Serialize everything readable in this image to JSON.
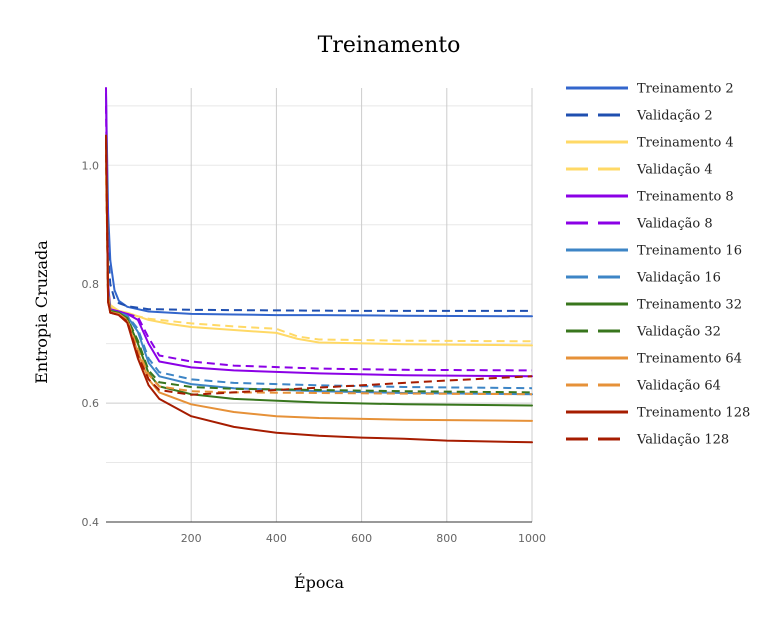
{
  "chart_data": {
    "type": "line",
    "title": "Treinamento",
    "xlabel": "Época",
    "ylabel": "Entropia Cruzada",
    "xlim": [
      0,
      1000
    ],
    "ylim": [
      0.4,
      1.13
    ],
    "x_ticks": [
      200,
      400,
      600,
      800,
      1000
    ],
    "y_ticks": [
      0.4,
      0.6,
      0.8,
      1.0
    ],
    "y_tick_labels": [
      "0.4",
      "0.6",
      "0.8",
      "1.0"
    ],
    "grid": true,
    "legend_position": "right",
    "series": [
      {
        "name": "Treinamento 2",
        "color": "#3366cc",
        "dash": false,
        "points": [
          [
            0,
            1.12
          ],
          [
            5,
            0.92
          ],
          [
            10,
            0.84
          ],
          [
            20,
            0.79
          ],
          [
            30,
            0.772
          ],
          [
            50,
            0.762
          ],
          [
            100,
            0.754
          ],
          [
            200,
            0.75
          ],
          [
            300,
            0.749
          ],
          [
            400,
            0.748
          ],
          [
            500,
            0.748
          ],
          [
            700,
            0.747
          ],
          [
            1000,
            0.746
          ]
        ]
      },
      {
        "name": "Validação 2",
        "color": "#1f4fb0",
        "dash": true,
        "points": [
          [
            0,
            1.05
          ],
          [
            5,
            0.86
          ],
          [
            10,
            0.8
          ],
          [
            20,
            0.775
          ],
          [
            30,
            0.768
          ],
          [
            50,
            0.763
          ],
          [
            100,
            0.758
          ],
          [
            200,
            0.757
          ],
          [
            400,
            0.756
          ],
          [
            600,
            0.755
          ],
          [
            800,
            0.755
          ],
          [
            1000,
            0.755
          ]
        ]
      },
      {
        "name": "Treinamento 4",
        "color": "#ffd966",
        "dash": false,
        "points": [
          [
            0,
            1.0
          ],
          [
            5,
            0.8
          ],
          [
            10,
            0.765
          ],
          [
            30,
            0.755
          ],
          [
            50,
            0.752
          ],
          [
            100,
            0.74
          ],
          [
            150,
            0.733
          ],
          [
            200,
            0.728
          ],
          [
            300,
            0.723
          ],
          [
            400,
            0.718
          ],
          [
            450,
            0.708
          ],
          [
            500,
            0.702
          ],
          [
            700,
            0.699
          ],
          [
            1000,
            0.697
          ]
        ]
      },
      {
        "name": "Validação 4",
        "color": "#ffd966",
        "dash": true,
        "points": [
          [
            0,
            0.98
          ],
          [
            5,
            0.79
          ],
          [
            10,
            0.762
          ],
          [
            30,
            0.756
          ],
          [
            50,
            0.75
          ],
          [
            100,
            0.742
          ],
          [
            200,
            0.734
          ],
          [
            300,
            0.729
          ],
          [
            400,
            0.725
          ],
          [
            450,
            0.712
          ],
          [
            500,
            0.707
          ],
          [
            700,
            0.705
          ],
          [
            1000,
            0.704
          ]
        ]
      },
      {
        "name": "Treinamento 8",
        "color": "#8b00e6",
        "dash": false,
        "points": [
          [
            0,
            1.13
          ],
          [
            5,
            0.8
          ],
          [
            10,
            0.758
          ],
          [
            30,
            0.754
          ],
          [
            50,
            0.75
          ],
          [
            75,
            0.74
          ],
          [
            100,
            0.7
          ],
          [
            125,
            0.67
          ],
          [
            200,
            0.66
          ],
          [
            300,
            0.655
          ],
          [
            500,
            0.65
          ],
          [
            700,
            0.647
          ],
          [
            1000,
            0.645
          ]
        ]
      },
      {
        "name": "Validação 8",
        "color": "#8b00e6",
        "dash": true,
        "points": [
          [
            0,
            1.1
          ],
          [
            5,
            0.79
          ],
          [
            10,
            0.757
          ],
          [
            30,
            0.754
          ],
          [
            50,
            0.75
          ],
          [
            75,
            0.745
          ],
          [
            100,
            0.71
          ],
          [
            125,
            0.68
          ],
          [
            200,
            0.67
          ],
          [
            300,
            0.663
          ],
          [
            500,
            0.658
          ],
          [
            700,
            0.656
          ],
          [
            1000,
            0.655
          ]
        ]
      },
      {
        "name": "Treinamento 16",
        "color": "#3d85c6",
        "dash": false,
        "points": [
          [
            0,
            1.05
          ],
          [
            5,
            0.79
          ],
          [
            10,
            0.756
          ],
          [
            30,
            0.752
          ],
          [
            50,
            0.746
          ],
          [
            75,
            0.72
          ],
          [
            100,
            0.668
          ],
          [
            125,
            0.645
          ],
          [
            200,
            0.632
          ],
          [
            300,
            0.625
          ],
          [
            500,
            0.62
          ],
          [
            700,
            0.617
          ],
          [
            1000,
            0.615
          ]
        ]
      },
      {
        "name": "Validação 16",
        "color": "#3d85c6",
        "dash": true,
        "points": [
          [
            0,
            1.04
          ],
          [
            5,
            0.785
          ],
          [
            10,
            0.755
          ],
          [
            30,
            0.752
          ],
          [
            50,
            0.747
          ],
          [
            75,
            0.725
          ],
          [
            100,
            0.675
          ],
          [
            125,
            0.652
          ],
          [
            200,
            0.64
          ],
          [
            300,
            0.634
          ],
          [
            500,
            0.63
          ],
          [
            700,
            0.627
          ],
          [
            1000,
            0.625
          ]
        ]
      },
      {
        "name": "Treinamento 32",
        "color": "#38761d",
        "dash": false,
        "points": [
          [
            0,
            1.05
          ],
          [
            5,
            0.78
          ],
          [
            10,
            0.755
          ],
          [
            30,
            0.752
          ],
          [
            50,
            0.742
          ],
          [
            75,
            0.7
          ],
          [
            100,
            0.65
          ],
          [
            125,
            0.628
          ],
          [
            200,
            0.615
          ],
          [
            300,
            0.607
          ],
          [
            500,
            0.601
          ],
          [
            700,
            0.598
          ],
          [
            1000,
            0.596
          ]
        ]
      },
      {
        "name": "Validação 32",
        "color": "#38761d",
        "dash": true,
        "points": [
          [
            0,
            1.04
          ],
          [
            5,
            0.78
          ],
          [
            10,
            0.754
          ],
          [
            30,
            0.751
          ],
          [
            50,
            0.743
          ],
          [
            75,
            0.705
          ],
          [
            100,
            0.655
          ],
          [
            125,
            0.635
          ],
          [
            200,
            0.627
          ],
          [
            300,
            0.624
          ],
          [
            500,
            0.622
          ],
          [
            700,
            0.62
          ],
          [
            1000,
            0.618
          ]
        ]
      },
      {
        "name": "Treinamento 64",
        "color": "#e69138",
        "dash": false,
        "points": [
          [
            0,
            1.03
          ],
          [
            5,
            0.78
          ],
          [
            10,
            0.753
          ],
          [
            30,
            0.75
          ],
          [
            50,
            0.738
          ],
          [
            75,
            0.685
          ],
          [
            100,
            0.64
          ],
          [
            125,
            0.618
          ],
          [
            200,
            0.598
          ],
          [
            300,
            0.585
          ],
          [
            400,
            0.578
          ],
          [
            500,
            0.575
          ],
          [
            700,
            0.572
          ],
          [
            1000,
            0.57
          ]
        ]
      },
      {
        "name": "Validação 64",
        "color": "#e69138",
        "dash": true,
        "points": [
          [
            0,
            1.02
          ],
          [
            5,
            0.78
          ],
          [
            10,
            0.752
          ],
          [
            30,
            0.75
          ],
          [
            50,
            0.74
          ],
          [
            75,
            0.69
          ],
          [
            100,
            0.648
          ],
          [
            125,
            0.628
          ],
          [
            200,
            0.62
          ],
          [
            300,
            0.618
          ],
          [
            500,
            0.617
          ],
          [
            700,
            0.616
          ],
          [
            1000,
            0.615
          ]
        ]
      },
      {
        "name": "Treinamento 128",
        "color": "#a61c00",
        "dash": false,
        "points": [
          [
            0,
            1.05
          ],
          [
            5,
            0.77
          ],
          [
            10,
            0.752
          ],
          [
            30,
            0.748
          ],
          [
            50,
            0.735
          ],
          [
            75,
            0.675
          ],
          [
            100,
            0.63
          ],
          [
            125,
            0.607
          ],
          [
            200,
            0.578
          ],
          [
            300,
            0.56
          ],
          [
            400,
            0.55
          ],
          [
            500,
            0.545
          ],
          [
            600,
            0.542
          ],
          [
            700,
            0.54
          ],
          [
            800,
            0.537
          ],
          [
            1000,
            0.534
          ]
        ]
      },
      {
        "name": "Validação 128",
        "color": "#a61c00",
        "dash": true,
        "points": [
          [
            0,
            1.04
          ],
          [
            5,
            0.77
          ],
          [
            10,
            0.752
          ],
          [
            30,
            0.748
          ],
          [
            50,
            0.737
          ],
          [
            75,
            0.68
          ],
          [
            100,
            0.64
          ],
          [
            125,
            0.622
          ],
          [
            200,
            0.614
          ],
          [
            300,
            0.618
          ],
          [
            400,
            0.622
          ],
          [
            500,
            0.626
          ],
          [
            600,
            0.63
          ],
          [
            700,
            0.634
          ],
          [
            800,
            0.638
          ],
          [
            1000,
            0.645
          ]
        ]
      }
    ]
  }
}
